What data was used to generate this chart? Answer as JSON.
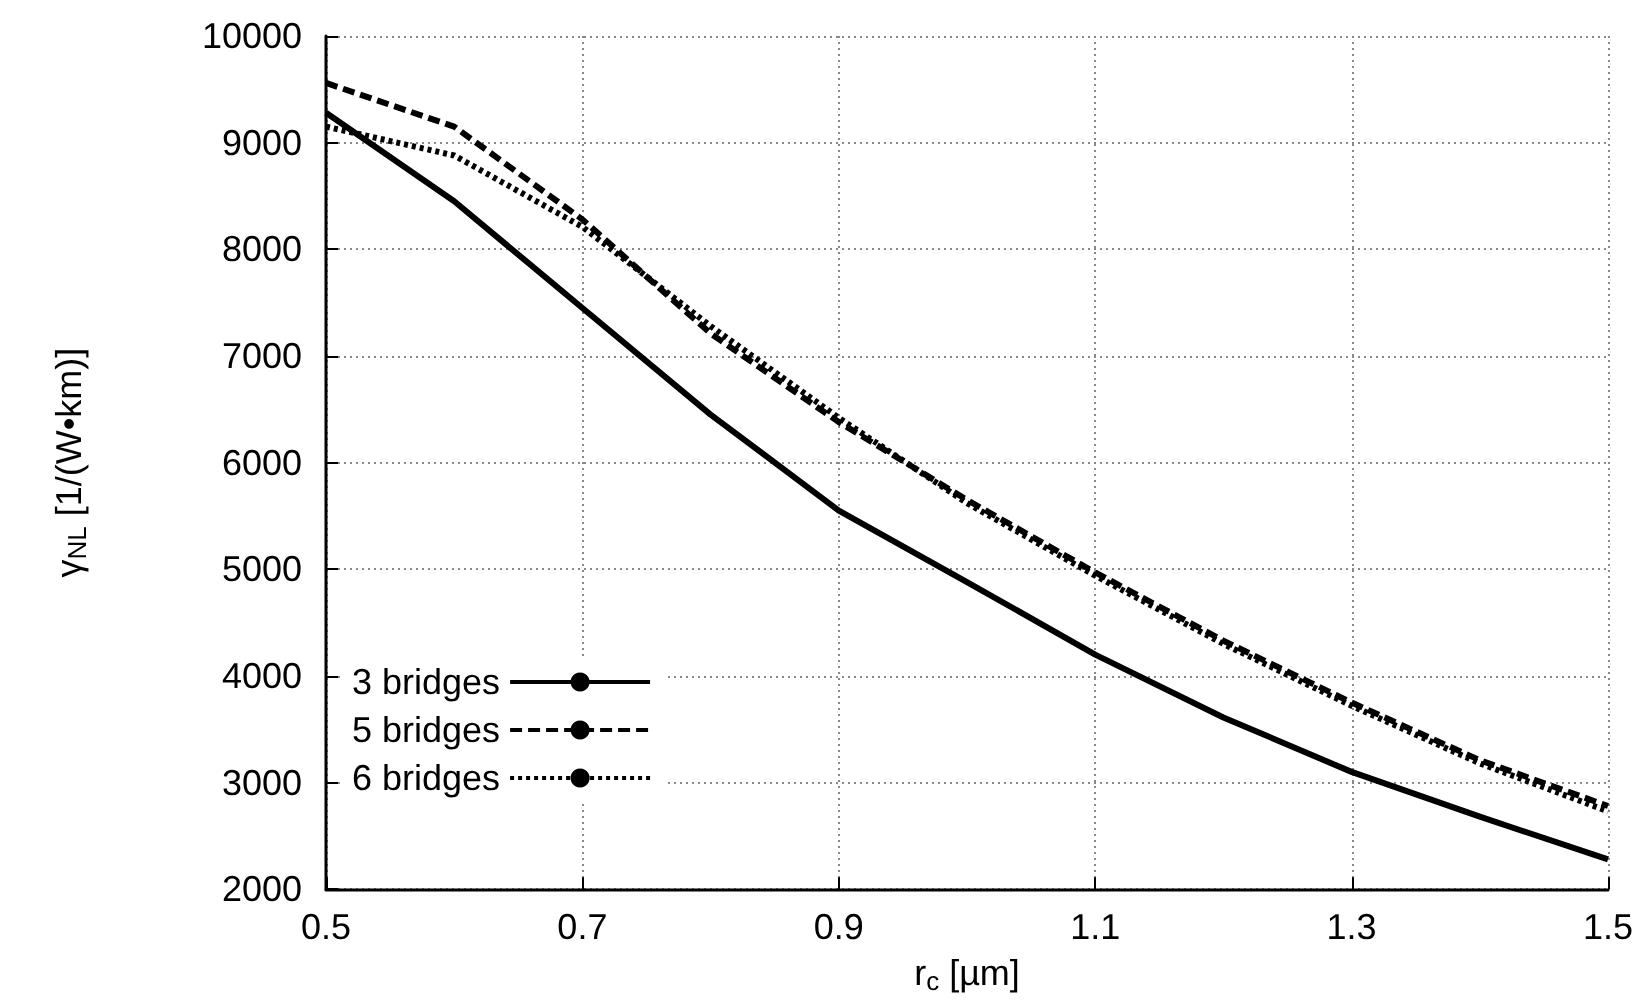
{
  "chart_data": {
    "type": "line",
    "xlabel": "r$_{c}$ [µm]",
    "ylabel": "γ$_{NL}$ [1/(W•km)]",
    "x": [
      0.5,
      0.6,
      0.7,
      0.8,
      0.9,
      1.0,
      1.1,
      1.2,
      1.3,
      1.4,
      1.5
    ],
    "series": [
      {
        "name": "3 bridges",
        "color": "#000000",
        "line_style": "solid",
        "values": [
          9280,
          8450,
          7450,
          6450,
          5550,
          4880,
          4200,
          3610,
          3100,
          2680,
          2280
        ]
      },
      {
        "name": "5 bridges",
        "color": "#000000",
        "line_style": "dashed",
        "values": [
          9560,
          9150,
          8280,
          7210,
          6380,
          5650,
          4970,
          4330,
          3750,
          3210,
          2780
        ]
      },
      {
        "name": "6 bridges",
        "color": "#000000",
        "line_style": "dotted",
        "values": [
          9150,
          8880,
          8210,
          7280,
          6420,
          5620,
          4940,
          4300,
          3720,
          3180,
          2730
        ]
      }
    ],
    "xlim": [
      0.5,
      1.5
    ],
    "xticks": [
      0.5,
      0.7,
      0.9,
      1.1,
      1.3,
      1.5
    ],
    "ylim": [
      2000,
      10000
    ],
    "yticks": [
      2000,
      3000,
      4000,
      5000,
      6000,
      7000,
      8000,
      9000,
      10000
    ],
    "grid": true,
    "legend": "bottom left",
    "marker": "none"
  }
}
